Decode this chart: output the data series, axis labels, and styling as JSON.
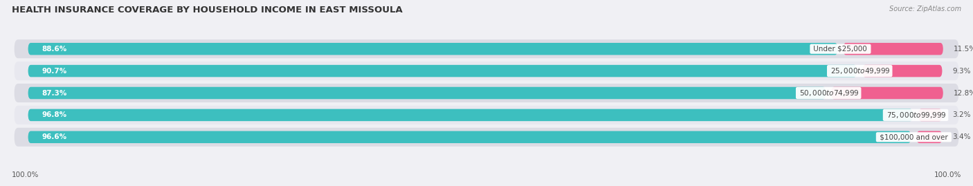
{
  "title": "HEALTH INSURANCE COVERAGE BY HOUSEHOLD INCOME IN EAST MISSOULA",
  "source": "Source: ZipAtlas.com",
  "categories": [
    "Under $25,000",
    "$25,000 to $49,999",
    "$50,000 to $74,999",
    "$75,000 to $99,999",
    "$100,000 and over"
  ],
  "with_coverage": [
    88.6,
    90.7,
    87.3,
    96.8,
    96.6
  ],
  "without_coverage": [
    11.5,
    9.3,
    12.8,
    3.2,
    3.4
  ],
  "color_with": "#3DBFBF",
  "color_without": "#F06090",
  "row_colors": [
    "#e8e8ec",
    "#f0f0f4",
    "#e8e8ec",
    "#f0f0f4",
    "#e8e8ec"
  ],
  "fig_bg": "#f0f0f4",
  "title_fontsize": 9.5,
  "bar_label_fontsize": 7.5,
  "pct_fontsize": 7.5,
  "legend_fontsize": 8,
  "tick_fontsize": 7.5
}
